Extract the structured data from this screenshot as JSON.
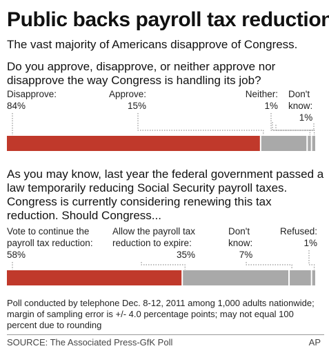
{
  "header": {
    "title": "Public backs payroll tax reduction",
    "subtitle": "The vast majority of Americans disapprove of Congress."
  },
  "question1": {
    "text": "Do you approve, disapprove, or neither approve nor disapprove the way Congress is handling its job?"
  },
  "question2": {
    "text": "As you may know, last year the federal government passed a law temporarily reducing Social Security payroll taxes. Congress is currently considering renewing this tax reduction. Should Congress..."
  },
  "colors": {
    "primary": "#c0392b",
    "secondary": "#a9a9a9",
    "leader": "#7a7a7a"
  },
  "chart_data": [
    {
      "type": "bar",
      "orientation": "stacked-horizontal",
      "categories": [
        "Disapprove:",
        "Approve:",
        "Neither:",
        "Don't know:"
      ],
      "values": [
        84,
        15,
        1,
        1
      ],
      "value_labels": [
        "84%",
        "15%",
        "1%",
        "1%"
      ],
      "label_lines": [
        [
          "Disapprove:"
        ],
        [
          "Approve:"
        ],
        [
          "Neither:"
        ],
        [
          "Don't",
          "know:"
        ]
      ],
      "xlim": [
        0,
        101
      ]
    },
    {
      "type": "bar",
      "orientation": "stacked-horizontal",
      "categories": [
        "Vote to continue the payroll tax reduction:",
        "Allow the payroll tax reduction to expire:",
        "Don't know:",
        "Refused:"
      ],
      "values": [
        58,
        35,
        7,
        1
      ],
      "value_labels": [
        "58%",
        "35%",
        "7%",
        "1%"
      ],
      "label_lines": [
        [
          "Vote to continue the",
          "payroll tax reduction:"
        ],
        [
          "Allow the payroll tax",
          "reduction to expire:"
        ],
        [
          "Don't",
          "know:"
        ],
        [
          "Refused:"
        ]
      ],
      "xlim": [
        0,
        101
      ]
    }
  ],
  "footer": {
    "note": "Poll conducted by telephone Dec. 8-12, 2011 among 1,000 adults nationwide; margin of sampling error is +/- 4.0 percentage points; may not equal 100 percent due to rounding",
    "source": "SOURCE: The Associated Press-GfK Poll",
    "credit": "AP"
  }
}
